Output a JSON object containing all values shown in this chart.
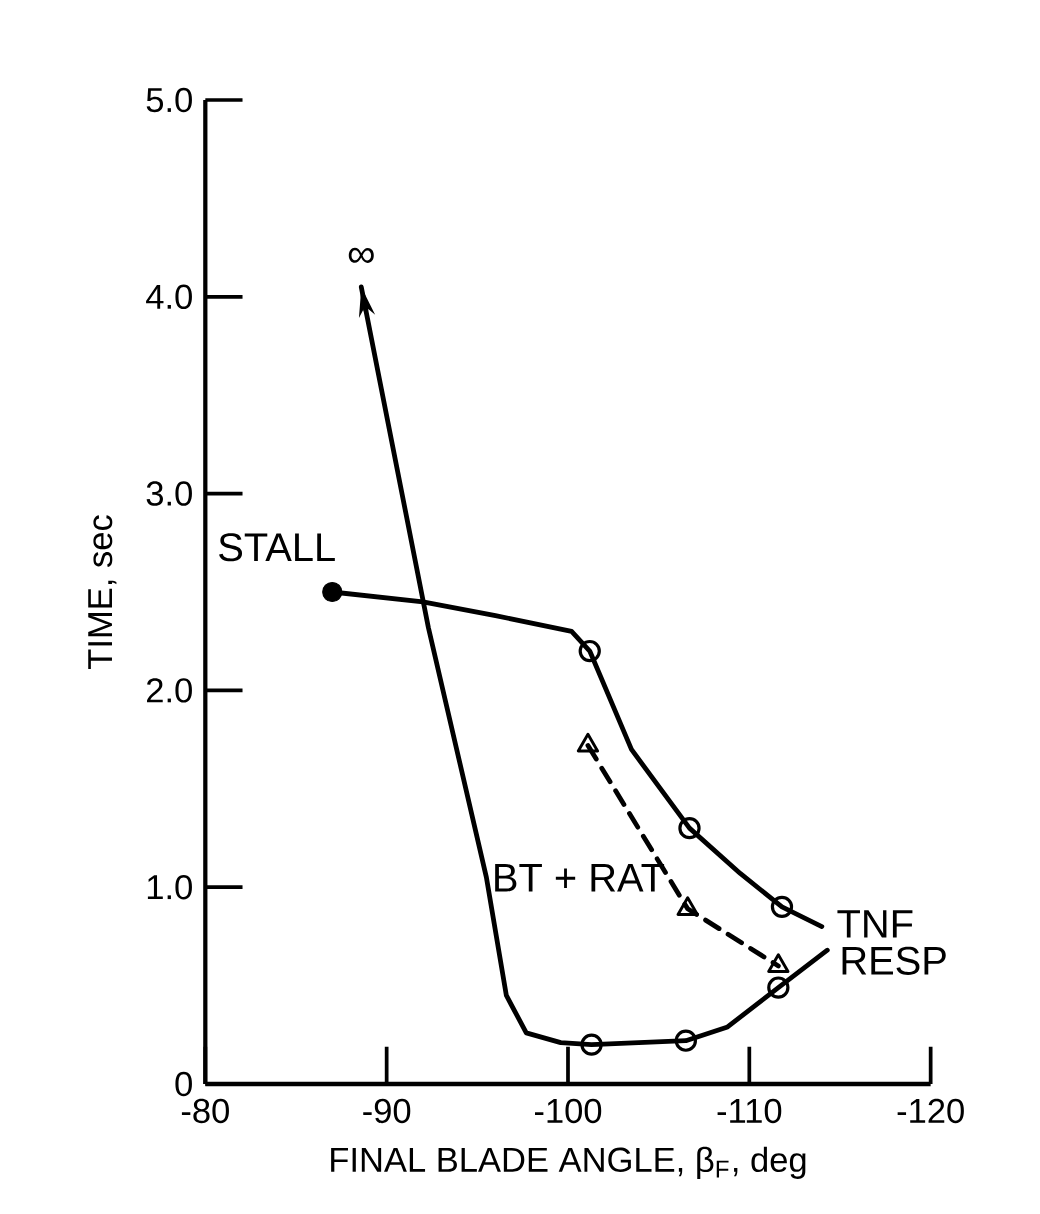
{
  "chart_data": {
    "type": "line",
    "xlabel": "FINAL BLADE ANGLE, β$_{F}$, deg",
    "ylabel": "TIME, sec",
    "xlim": [
      -80,
      -120
    ],
    "xticks": [
      -80,
      -90,
      -100,
      -110,
      -120
    ],
    "ylim": [
      0,
      5
    ],
    "yticks": [
      {
        "value": 0,
        "label": "0"
      },
      {
        "value": 1,
        "label": "1.0"
      },
      {
        "value": 2,
        "label": "2.0"
      },
      {
        "value": 3,
        "label": "3.0"
      },
      {
        "value": 4,
        "label": "4.0"
      },
      {
        "value": 5,
        "label": "5.0"
      }
    ],
    "grid": false,
    "series": [
      {
        "name": "TNF",
        "color": "#000000",
        "marker": "none",
        "line_style": "solid",
        "x": [
          -87.0,
          -92.0,
          -96.0,
          -100.2,
          -101.2,
          -103.5,
          -106.7,
          -109.5,
          -111.8,
          -114.0
        ],
        "values": [
          2.5,
          2.45,
          2.38,
          2.3,
          2.2,
          1.7,
          1.3,
          1.07,
          0.9,
          0.8
        ]
      },
      {
        "type": "scatter",
        "color": "#000000",
        "marker": "circle",
        "x": [
          -101.2,
          -106.7,
          -111.8
        ],
        "values": [
          2.2,
          1.3,
          0.9
        ]
      },
      {
        "name": "RESP",
        "color": "#000000",
        "marker": "none",
        "line_style": "solid",
        "x": [
          -88.6,
          -92.3,
          -95.5,
          -96.6,
          -97.7,
          -99.6,
          -101.3,
          -106.5,
          -108.8,
          -111.6,
          -114.3
        ],
        "values": [
          4.05,
          2.32,
          1.05,
          0.45,
          0.26,
          0.21,
          0.2,
          0.22,
          0.29,
          0.49,
          0.68
        ]
      },
      {
        "type": "scatter",
        "color": "#000000",
        "marker": "circle",
        "x": [
          -101.3,
          -106.5,
          -111.6
        ],
        "values": [
          0.2,
          0.22,
          0.49
        ]
      },
      {
        "name": "BT + RAT",
        "type": "line",
        "color": "#000000",
        "marker": "triangle",
        "line_style": "dashed",
        "x": [
          -101.1,
          -106.6,
          -111.6
        ],
        "values": [
          1.72,
          0.89,
          0.6
        ]
      },
      {
        "name": "STALL",
        "type": "scatter",
        "color": "#000000",
        "marker": "filled circle",
        "x": [
          -87.0
        ],
        "values": [
          2.5
        ]
      }
    ],
    "annotations": [
      "∞"
    ]
  }
}
